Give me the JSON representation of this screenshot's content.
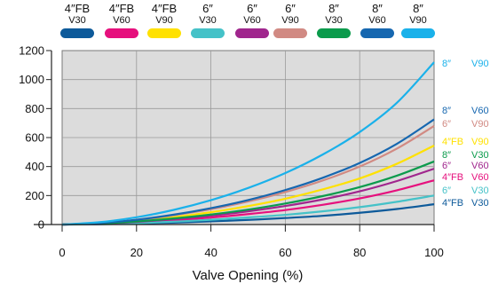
{
  "chart_data": {
    "type": "line",
    "title": "",
    "xlabel": "Valve Opening (%)",
    "ylabel": "",
    "xlim": [
      0,
      100
    ],
    "ylim": [
      0,
      1200
    ],
    "x_ticks": [
      "0",
      "20",
      "40",
      "60",
      "80",
      "100"
    ],
    "y_ticks": [
      "0",
      "200",
      "400",
      "600",
      "800",
      "1000",
      "1200"
    ],
    "grid": true,
    "legend_position": "top",
    "x": [
      0,
      10,
      20,
      30,
      40,
      50,
      60,
      70,
      80,
      90,
      100
    ],
    "series": [
      {
        "name": "4″FB V30",
        "size": "4″FB",
        "type": "V30",
        "color": "#0d5a9a",
        "values": [
          0,
          2,
          7,
          13,
          22,
          32,
          45,
          60,
          81,
          107,
          140
        ]
      },
      {
        "name": "4″FB V60",
        "size": "4″FB",
        "type": "V60",
        "color": "#e6107d",
        "values": [
          0,
          4,
          14,
          29,
          48,
          72,
          100,
          136,
          180,
          236,
          305
        ]
      },
      {
        "name": "4″FB V90",
        "size": "4″FB",
        "type": "V90",
        "color": "#ffe100",
        "values": [
          0,
          7,
          25,
          51,
          85,
          127,
          178,
          242,
          318,
          419,
          545
        ]
      },
      {
        "name": "6″ V30",
        "size": "6″",
        "type": "V30",
        "color": "#45c2c8",
        "values": [
          0,
          3,
          10,
          20,
          33,
          49,
          67,
          91,
          120,
          157,
          200
        ]
      },
      {
        "name": "6″ V60",
        "size": "6″",
        "type": "V60",
        "color": "#a0268d",
        "values": [
          0,
          5,
          18,
          37,
          61,
          91,
          128,
          173,
          229,
          300,
          385
        ]
      },
      {
        "name": "6″ V90",
        "size": "6″",
        "type": "V90",
        "color": "#d18a83",
        "values": [
          0,
          9,
          31,
          64,
          106,
          159,
          224,
          303,
          400,
          524,
          680
        ]
      },
      {
        "name": "8″ V30",
        "size": "8″",
        "type": "V30",
        "color": "#0b9b4c",
        "values": [
          0,
          6,
          21,
          42,
          69,
          103,
          145,
          196,
          258,
          337,
          435
        ]
      },
      {
        "name": "8″ V60",
        "size": "8″",
        "type": "V60",
        "color": "#1667b0",
        "values": [
          0,
          10,
          33,
          68,
          113,
          169,
          238,
          322,
          425,
          557,
          725
        ]
      },
      {
        "name": "8″ V90",
        "size": "8″",
        "type": "V90",
        "color": "#1ab1ea",
        "values": [
          0,
          16,
          50,
          101,
          168,
          252,
          355,
          482,
          638,
          840,
          1120
        ]
      }
    ],
    "legend_order": [
      0,
      1,
      2,
      3,
      4,
      5,
      6,
      7,
      8
    ],
    "end_label_order": [
      8,
      7,
      5,
      2,
      6,
      4,
      1,
      3,
      0
    ]
  }
}
